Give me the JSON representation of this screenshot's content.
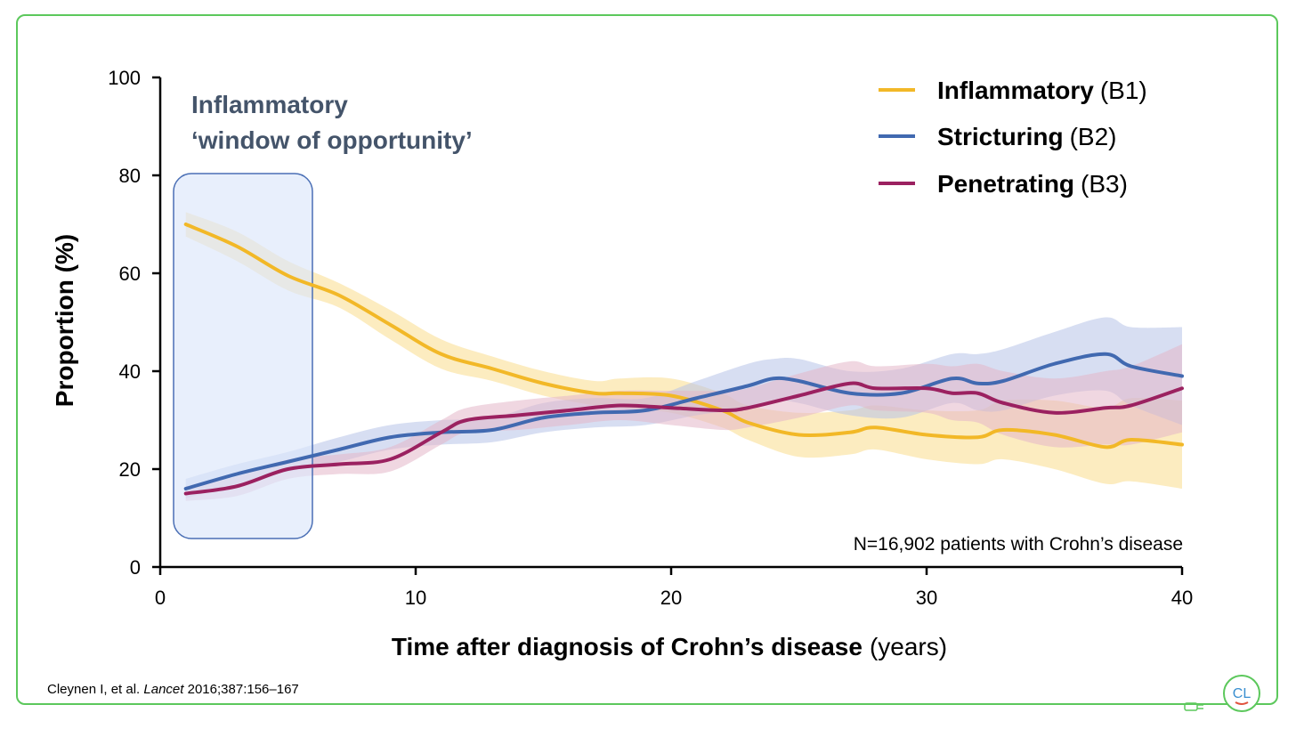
{
  "chart_data": {
    "type": "line",
    "xlabel_bold": "Time after diagnosis of Crohn’s disease",
    "xlabel_unit": "(years)",
    "ylabel": "Proportion (%)",
    "xlim": [
      0,
      40
    ],
    "ylim": [
      0,
      100
    ],
    "xticks": [
      "0",
      "10",
      "20",
      "30",
      "40"
    ],
    "yticks": [
      "0",
      "20",
      "40",
      "60",
      "80",
      "100"
    ],
    "legend_position": "top-right",
    "grid": false,
    "annotation": {
      "line1": "Inflammatory",
      "line2": "‘window of opportunity’",
      "window_x": [
        0.5,
        6
      ]
    },
    "note": "N=16,902 patients with Crohn’s disease",
    "series": [
      {
        "name_bold": "Inflammatory",
        "name_code": "(B1)",
        "color": "#f2b827",
        "band_color": "#f9dc8c",
        "x": [
          1,
          3,
          5,
          7,
          9,
          11,
          13,
          15,
          17,
          18,
          20,
          22,
          23,
          25,
          27,
          28,
          30,
          32,
          33,
          35,
          37,
          38,
          40
        ],
        "y": [
          70,
          65.5,
          59.5,
          55.5,
          49.5,
          43.5,
          40.5,
          37.5,
          35.5,
          35.5,
          35,
          32,
          29.5,
          27,
          27.5,
          28.5,
          27,
          26.5,
          28,
          27,
          24.5,
          26,
          25
        ],
        "upper": [
          72.5,
          68.5,
          62.5,
          58,
          52.5,
          46.5,
          43,
          40,
          38,
          38.5,
          38.5,
          35.5,
          33,
          31.5,
          32,
          33,
          32,
          32,
          34,
          34,
          32.5,
          34.5,
          34
        ],
        "lower": [
          67.5,
          62.5,
          56.5,
          53,
          46.5,
          40.5,
          38,
          35,
          33,
          32.5,
          31.5,
          28.5,
          26,
          22.5,
          23,
          24,
          22,
          21,
          22,
          20,
          17,
          17.5,
          16
        ]
      },
      {
        "name_bold": "Stricturing",
        "name_code": "(B2)",
        "color": "#4169b0",
        "band_color": "#b6c2e8",
        "x": [
          1,
          3,
          5,
          7,
          9,
          11,
          13,
          15,
          17,
          19,
          21,
          23,
          24,
          25,
          27,
          29,
          31,
          32,
          33,
          35,
          37,
          38,
          40
        ],
        "y": [
          16,
          19,
          21.5,
          24,
          26.5,
          27.5,
          28,
          30.5,
          31.5,
          32,
          34.5,
          37,
          38.5,
          38,
          35.5,
          35.5,
          38.5,
          37.5,
          38,
          41.5,
          43.5,
          41,
          39
        ],
        "upper": [
          18,
          21,
          23.5,
          26.5,
          29,
          30,
          30.5,
          33.5,
          34.5,
          34.5,
          38,
          41.5,
          42.5,
          42.5,
          40,
          40.5,
          43.5,
          43.5,
          44.5,
          48,
          51,
          49,
          49
        ],
        "lower": [
          14,
          17,
          19.5,
          21.5,
          24,
          25,
          25.5,
          27.5,
          28.5,
          29,
          31,
          32.5,
          34,
          33.5,
          31,
          30.5,
          33.5,
          32,
          32,
          35,
          36,
          33,
          29
        ]
      },
      {
        "name_bold": "Penetrating",
        "name_code": "(B3)",
        "color": "#9b2160",
        "band_color": "#e4b6c8",
        "x": [
          1,
          3,
          5,
          7,
          9,
          11,
          12,
          14,
          16,
          18,
          20,
          22,
          23,
          25,
          27,
          28,
          30,
          31,
          32,
          33,
          35,
          37,
          38,
          40
        ],
        "y": [
          15,
          16.5,
          20,
          21,
          22,
          27.5,
          30,
          31,
          32,
          33,
          32.5,
          32,
          32.5,
          35,
          37.5,
          36.5,
          36.5,
          35.5,
          35.5,
          33.5,
          31.5,
          32.5,
          33,
          36.5
        ],
        "upper": [
          16.5,
          18.5,
          22,
          23,
          24.5,
          30,
          32.5,
          34,
          35,
          36,
          36,
          36,
          36.5,
          39.5,
          42,
          41,
          41.5,
          41,
          41.5,
          40,
          38.5,
          40,
          41,
          45.5
        ],
        "lower": [
          13.5,
          14.5,
          18,
          19,
          19.5,
          25,
          27.5,
          28,
          29,
          30,
          29,
          28,
          28.5,
          30.5,
          33,
          32,
          31.5,
          30,
          29.5,
          27,
          24.5,
          25,
          25,
          27.5
        ]
      }
    ]
  },
  "citation": {
    "authors": "Cleynen I, et al.",
    "journal": "Lancet",
    "ref": "2016;387:156–167"
  },
  "logo_text": "CL"
}
